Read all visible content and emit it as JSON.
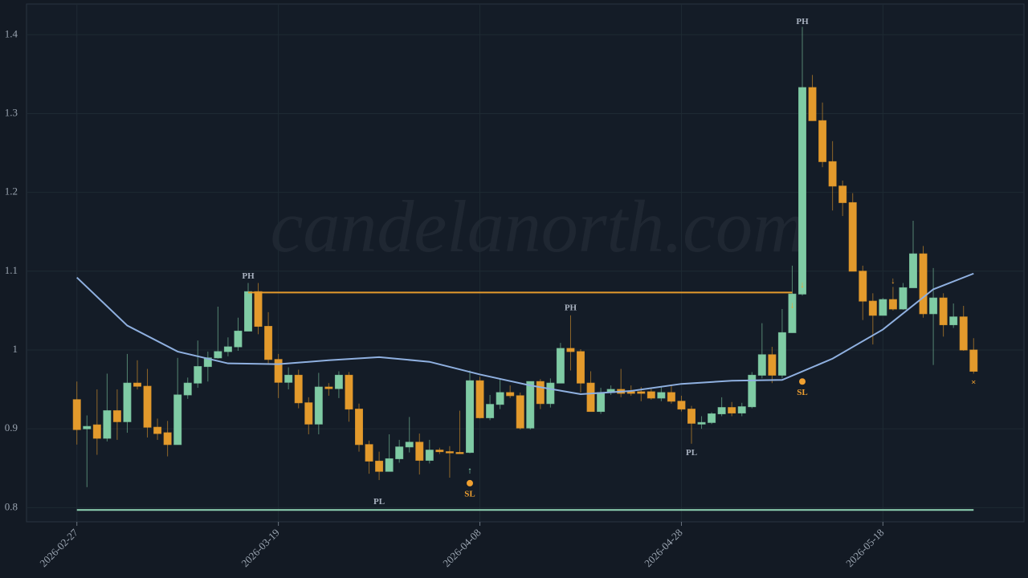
{
  "chart_data": {
    "type": "candlestick",
    "watermark": "candelanorth.com",
    "up_color": "#7fcba4",
    "down_color": "#e39a2c",
    "x": [
      "2026-02-27",
      "2026-02-28",
      "2026-03-01",
      "2026-03-02",
      "2026-03-03",
      "2026-03-04",
      "2026-03-05",
      "2026-03-06",
      "2026-03-07",
      "2026-03-08",
      "2026-03-09",
      "2026-03-10",
      "2026-03-11",
      "2026-03-12",
      "2026-03-13",
      "2026-03-14",
      "2026-03-15",
      "2026-03-16",
      "2026-03-17",
      "2026-03-18",
      "2026-03-19",
      "2026-03-20",
      "2026-03-21",
      "2026-03-22",
      "2026-03-23",
      "2026-03-24",
      "2026-03-25",
      "2026-03-26",
      "2026-03-27",
      "2026-03-28",
      "2026-03-29",
      "2026-03-30",
      "2026-03-31",
      "2026-04-01",
      "2026-04-02",
      "2026-04-03",
      "2026-04-04",
      "2026-04-05",
      "2026-04-06",
      "2026-04-07",
      "2026-04-08",
      "2026-04-09",
      "2026-04-10",
      "2026-04-11",
      "2026-04-12",
      "2026-04-13",
      "2026-04-14",
      "2026-04-15",
      "2026-04-16",
      "2026-04-17",
      "2026-04-18",
      "2026-04-19",
      "2026-04-20",
      "2026-04-21",
      "2026-04-22",
      "2026-04-23",
      "2026-04-24",
      "2026-04-25",
      "2026-04-26",
      "2026-04-27",
      "2026-04-28",
      "2026-04-29",
      "2026-04-30",
      "2026-05-01",
      "2026-05-02",
      "2026-05-03",
      "2026-05-04",
      "2026-05-05",
      "2026-05-06",
      "2026-05-07",
      "2026-05-08",
      "2026-05-09",
      "2026-05-10",
      "2026-05-11",
      "2026-05-12",
      "2026-05-13",
      "2026-05-14",
      "2026-05-15",
      "2026-05-16",
      "2026-05-17",
      "2026-05-18",
      "2026-05-19",
      "2026-05-20",
      "2026-05-21",
      "2026-05-22",
      "2026-05-23",
      "2026-05-24",
      "2026-05-25",
      "2026-05-26",
      "2026-05-27"
    ],
    "open": [
      0.937,
      0.9,
      0.905,
      0.888,
      0.923,
      0.909,
      0.958,
      0.954,
      0.902,
      0.895,
      0.88,
      0.943,
      0.958,
      0.979,
      0.99,
      0.998,
      1.004,
      1.024,
      1.074,
      1.03,
      0.988,
      0.959,
      0.968,
      0.933,
      0.906,
      0.953,
      0.951,
      0.968,
      0.925,
      0.88,
      0.859,
      0.846,
      0.862,
      0.877,
      0.883,
      0.86,
      0.873,
      0.871,
      0.87,
      0.87,
      0.961,
      0.914,
      0.931,
      0.946,
      0.942,
      0.901,
      0.96,
      0.932,
      0.958,
      1.002,
      0.998,
      0.958,
      0.922,
      0.946,
      0.95,
      0.947,
      0.947,
      0.947,
      0.939,
      0.946,
      0.935,
      0.925,
      0.906,
      0.908,
      0.919,
      0.927,
      0.92,
      0.928,
      0.968,
      0.994,
      0.968,
      1.022,
      1.071,
      1.333,
      1.291,
      1.239,
      1.208,
      1.187,
      1.1,
      1.062,
      1.044,
      1.064,
      1.052,
      1.079,
      1.122,
      1.046,
      1.066,
      1.032,
      1.042,
      1.0
    ],
    "high": [
      0.96,
      0.917,
      0.95,
      0.97,
      0.95,
      0.995,
      0.987,
      0.976,
      0.913,
      0.91,
      0.99,
      0.965,
      1.012,
      0.998,
      1.055,
      1.016,
      1.041,
      1.085,
      1.085,
      1.048,
      0.995,
      0.978,
      0.975,
      0.94,
      0.971,
      0.958,
      0.973,
      0.972,
      0.932,
      0.885,
      0.871,
      0.893,
      0.886,
      0.915,
      0.894,
      0.886,
      0.876,
      0.878,
      0.923,
      0.974,
      0.966,
      0.943,
      0.963,
      0.955,
      0.946,
      0.96,
      0.963,
      0.964,
      1.009,
      1.044,
      1.001,
      0.973,
      0.952,
      0.955,
      0.976,
      0.955,
      0.953,
      0.952,
      0.954,
      0.955,
      0.942,
      0.929,
      0.916,
      0.921,
      0.94,
      0.934,
      0.933,
      0.972,
      1.034,
      1.004,
      1.052,
      1.107,
      1.41,
      1.349,
      1.314,
      1.265,
      1.215,
      1.199,
      1.107,
      1.072,
      1.066,
      1.08,
      1.085,
      1.164,
      1.132,
      1.104,
      1.072,
      1.059,
      1.056,
      1.015
    ],
    "low": [
      0.88,
      0.826,
      0.867,
      0.884,
      0.886,
      0.895,
      0.95,
      0.889,
      0.886,
      0.865,
      0.88,
      0.938,
      0.952,
      0.96,
      0.989,
      0.992,
      0.999,
      1.024,
      1.02,
      0.983,
      0.939,
      0.95,
      0.926,
      0.893,
      0.893,
      0.942,
      0.939,
      0.909,
      0.871,
      0.843,
      0.835,
      0.846,
      0.857,
      0.87,
      0.842,
      0.856,
      0.868,
      0.838,
      0.869,
      0.869,
      0.913,
      0.911,
      0.925,
      0.939,
      0.899,
      0.899,
      0.925,
      0.927,
      0.958,
      0.974,
      0.946,
      0.922,
      0.919,
      0.943,
      0.94,
      0.942,
      0.935,
      0.937,
      0.935,
      0.932,
      0.922,
      0.881,
      0.9,
      0.906,
      0.916,
      0.916,
      0.916,
      0.926,
      0.964,
      0.958,
      0.964,
      1.022,
      1.069,
      1.291,
      1.232,
      1.177,
      1.17,
      1.1,
      1.038,
      1.007,
      1.044,
      1.05,
      1.051,
      1.079,
      1.041,
      0.981,
      1.017,
      1.028,
      0.999,
      0.97
    ],
    "close": [
      0.899,
      0.903,
      0.888,
      0.923,
      0.909,
      0.958,
      0.954,
      0.902,
      0.894,
      0.88,
      0.943,
      0.958,
      0.979,
      0.99,
      0.998,
      1.004,
      1.024,
      1.074,
      1.03,
      0.988,
      0.959,
      0.968,
      0.933,
      0.906,
      0.953,
      0.951,
      0.968,
      0.925,
      0.88,
      0.859,
      0.846,
      0.862,
      0.877,
      0.883,
      0.86,
      0.873,
      0.871,
      0.87,
      0.869,
      0.961,
      0.914,
      0.931,
      0.946,
      0.942,
      0.901,
      0.96,
      0.932,
      0.958,
      1.002,
      0.998,
      0.958,
      0.922,
      0.946,
      0.95,
      0.945,
      0.945,
      0.945,
      0.939,
      0.946,
      0.935,
      0.925,
      0.907,
      0.908,
      0.919,
      0.927,
      0.92,
      0.928,
      0.968,
      0.994,
      0.968,
      1.022,
      1.071,
      1.333,
      1.291,
      1.239,
      1.208,
      1.187,
      1.1,
      1.062,
      1.044,
      1.064,
      1.052,
      1.079,
      1.122,
      1.046,
      1.066,
      1.032,
      1.042,
      1.0,
      0.973
    ],
    "overlay": {
      "color": "#8fb0e0",
      "x": [
        "2026-02-27",
        "2026-03-04",
        "2026-03-09",
        "2026-03-14",
        "2026-03-19",
        "2026-03-24",
        "2026-03-29",
        "2026-04-03",
        "2026-04-08",
        "2026-04-13",
        "2026-04-18",
        "2026-04-23",
        "2026-04-28",
        "2026-05-03",
        "2026-05-08",
        "2026-05-13",
        "2026-05-18",
        "2026-05-23",
        "2026-05-27"
      ],
      "values": [
        1.092,
        1.031,
        0.998,
        0.983,
        0.982,
        0.987,
        0.991,
        0.985,
        0.969,
        0.955,
        0.944,
        0.948,
        0.957,
        0.961,
        0.962,
        0.989,
        1.026,
        1.077,
        1.097
      ]
    },
    "levels": [
      {
        "value": 1.073,
        "from": "2026-03-16",
        "to": "2026-05-09",
        "color": "#e39a2c"
      },
      {
        "value": 0.797,
        "from": "2026-02-27",
        "to": "2026-05-27",
        "color": "#8fd4b4"
      }
    ],
    "annotations": [
      {
        "x": "2026-03-16",
        "y": 1.093,
        "label": "PH",
        "color": "#a9b2c0"
      },
      {
        "x": "2026-04-17",
        "y": 1.053,
        "label": "PH",
        "color": "#a9b2c0"
      },
      {
        "x": "2026-05-10",
        "y": 1.416,
        "label": "PH",
        "color": "#a9b2c0"
      },
      {
        "x": "2026-03-29",
        "y": 0.807,
        "label": "PL",
        "color": "#a9b2c0"
      },
      {
        "x": "2026-04-29",
        "y": 0.869,
        "label": "PL",
        "color": "#a9b2c0"
      },
      {
        "x": "2026-04-07",
        "y": 0.831,
        "label": "SL",
        "color": "#f0a030",
        "dot": true
      },
      {
        "x": "2026-05-10",
        "y": 0.96,
        "label": "SL",
        "color": "#f0a030",
        "dot": true
      },
      {
        "x": "2026-04-07",
        "y": 0.846,
        "label": "↑",
        "color": "#7fd1a8"
      },
      {
        "x": "2026-05-09",
        "y": 1.056,
        "label": "↓",
        "color": "#f0a030"
      },
      {
        "x": "2026-05-10",
        "y": 1.082,
        "label": "↓",
        "color": "#f0a030"
      },
      {
        "x": "2026-05-19",
        "y": 1.087,
        "label": "↓",
        "color": "#f0a030"
      },
      {
        "x": "2026-05-27",
        "y": 0.958,
        "label": "×",
        "color": "#f0a030"
      }
    ],
    "xlim": [
      "2026-02-22",
      "2026-06-01"
    ],
    "xticks": [
      "2026-02-27",
      "2026-03-19",
      "2026-04-08",
      "2026-04-28",
      "2026-05-18"
    ],
    "ylim": [
      0.782,
      1.439
    ],
    "yticks": [
      0.8,
      0.9,
      1,
      1.1,
      1.2,
      1.3,
      1.4
    ],
    "grid": true
  }
}
